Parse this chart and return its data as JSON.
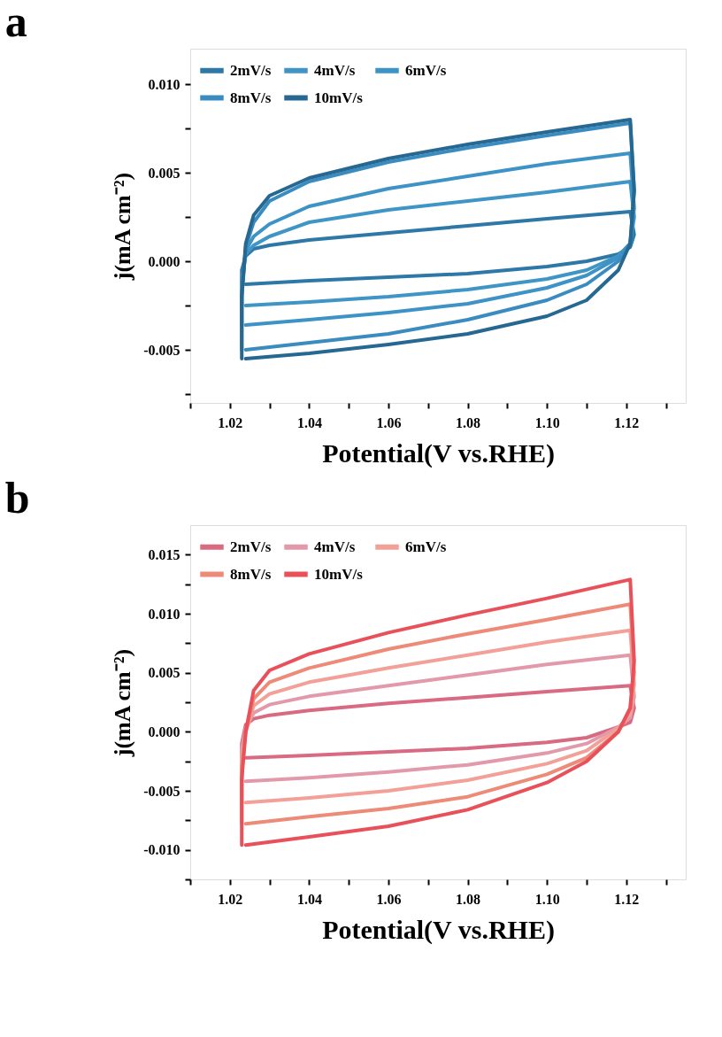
{
  "chart_data": [
    {
      "type": "line",
      "title": "a",
      "xlabel": "Potential(V vs.RHE)",
      "ylabel": "j(mA cm⁻²)",
      "legend": "top left",
      "grid": false,
      "line_style": "solid",
      "marker": "none",
      "x": [
        1.023,
        1.023,
        1.024,
        1.026,
        1.03,
        1.04,
        1.06,
        1.08,
        1.1,
        1.121,
        1.122,
        1.121,
        1.118,
        1.11,
        1.1,
        1.08,
        1.06,
        1.04,
        1.024
      ],
      "xlim": [
        1.01,
        1.135
      ],
      "xticks": [
        {
          "value": 1.01,
          "label": null
        },
        {
          "value": 1.02,
          "label": "1.02"
        },
        {
          "value": 1.03,
          "label": null
        },
        {
          "value": 1.04,
          "label": "1.04"
        },
        {
          "value": 1.05,
          "label": null
        },
        {
          "value": 1.06,
          "label": "1.06"
        },
        {
          "value": 1.07,
          "label": null
        },
        {
          "value": 1.08,
          "label": "1.08"
        },
        {
          "value": 1.09,
          "label": null
        },
        {
          "value": 1.1,
          "label": "1.10"
        },
        {
          "value": 1.11,
          "label": null
        },
        {
          "value": 1.12,
          "label": "1.12"
        },
        {
          "value": 1.13,
          "label": null
        }
      ],
      "ylim": [
        -0.008,
        0.012
      ],
      "yticks": [
        {
          "value": -0.0075,
          "label": null
        },
        {
          "value": -0.005,
          "label": "-0.005"
        },
        {
          "value": -0.0025,
          "label": null
        },
        {
          "value": 0,
          "label": "0.000"
        },
        {
          "value": 0.0025,
          "label": null
        },
        {
          "value": 0.005,
          "label": "0.005"
        },
        {
          "value": 0.0075,
          "label": null
        },
        {
          "value": 0.01,
          "label": "0.010"
        }
      ],
      "series": [
        {
          "name": "2mV/s",
          "color": "#2e78a8",
          "values": [
            -0.0013,
            -0.0005,
            0.0003,
            0.0007,
            0.0009,
            0.0012,
            0.0016,
            0.002,
            0.0024,
            0.0028,
            0.0015,
            0.0008,
            0.0004,
            0.0,
            -0.0003,
            -0.0007,
            -0.0009,
            -0.0011,
            -0.0013
          ]
        },
        {
          "name": "4mV/s",
          "color": "#3f95c6",
          "values": [
            -0.0025,
            -0.001,
            0.0004,
            0.0009,
            0.0014,
            0.0022,
            0.0029,
            0.0034,
            0.0039,
            0.0045,
            0.0025,
            0.001,
            0.0003,
            -0.0005,
            -0.001,
            -0.0016,
            -0.002,
            -0.0023,
            -0.0025
          ]
        },
        {
          "name": "6mV/s",
          "color": "#3d93c5",
          "values": [
            -0.0036,
            -0.0015,
            0.0006,
            0.0014,
            0.0021,
            0.0031,
            0.0041,
            0.0048,
            0.0055,
            0.0061,
            0.003,
            0.001,
            0.0002,
            -0.0008,
            -0.0015,
            -0.0024,
            -0.0029,
            -0.0033,
            -0.0036
          ]
        },
        {
          "name": "8mV/s",
          "color": "#3a8cc0",
          "values": [
            -0.005,
            -0.002,
            0.0008,
            0.0022,
            0.0034,
            0.0045,
            0.0056,
            0.0064,
            0.0071,
            0.0078,
            0.004,
            0.001,
            0.0,
            -0.0013,
            -0.0022,
            -0.0033,
            -0.0041,
            -0.0046,
            -0.005
          ]
        },
        {
          "name": "10mV/s",
          "color": "#266892",
          "values": [
            -0.0055,
            -0.002,
            0.001,
            0.0026,
            0.0037,
            0.0047,
            0.0058,
            0.0066,
            0.0073,
            0.008,
            0.004,
            0.001,
            -0.0005,
            -0.0022,
            -0.0031,
            -0.0041,
            -0.0047,
            -0.0052,
            -0.0055
          ]
        }
      ]
    },
    {
      "type": "line",
      "title": "b",
      "xlabel": "Potential(V vs.RHE)",
      "ylabel": "j(mA cm⁻²)",
      "legend": "top left",
      "grid": false,
      "line_style": "solid",
      "marker": "none",
      "x": [
        1.023,
        1.023,
        1.024,
        1.026,
        1.03,
        1.04,
        1.06,
        1.08,
        1.1,
        1.121,
        1.122,
        1.121,
        1.118,
        1.11,
        1.1,
        1.08,
        1.06,
        1.04,
        1.024
      ],
      "xlim": [
        1.01,
        1.135
      ],
      "xticks": [
        {
          "value": 1.01,
          "label": null
        },
        {
          "value": 1.02,
          "label": "1.02"
        },
        {
          "value": 1.03,
          "label": null
        },
        {
          "value": 1.04,
          "label": "1.04"
        },
        {
          "value": 1.05,
          "label": null
        },
        {
          "value": 1.06,
          "label": "1.06"
        },
        {
          "value": 1.07,
          "label": null
        },
        {
          "value": 1.08,
          "label": "1.08"
        },
        {
          "value": 1.09,
          "label": null
        },
        {
          "value": 1.1,
          "label": "1.10"
        },
        {
          "value": 1.11,
          "label": null
        },
        {
          "value": 1.12,
          "label": "1.12"
        },
        {
          "value": 1.13,
          "label": null
        }
      ],
      "ylim": [
        -0.0125,
        0.0175
      ],
      "yticks": [
        {
          "value": -0.0125,
          "label": null
        },
        {
          "value": -0.01,
          "label": "-0.010"
        },
        {
          "value": -0.0075,
          "label": null
        },
        {
          "value": -0.005,
          "label": "-0.005"
        },
        {
          "value": -0.0025,
          "label": null
        },
        {
          "value": 0,
          "label": "0.000"
        },
        {
          "value": 0.0025,
          "label": null
        },
        {
          "value": 0.005,
          "label": "0.005"
        },
        {
          "value": 0.0075,
          "label": null
        },
        {
          "value": 0.01,
          "label": "0.010"
        },
        {
          "value": 0.0125,
          "label": null
        },
        {
          "value": 0.015,
          "label": "0.015"
        }
      ],
      "series": [
        {
          "name": "2mV/s",
          "color": "#d86a82",
          "values": [
            -0.0022,
            -0.001,
            0.0006,
            0.0011,
            0.0014,
            0.0018,
            0.0024,
            0.0029,
            0.0034,
            0.0039,
            0.002,
            0.0008,
            0.0004,
            -0.0005,
            -0.0009,
            -0.0014,
            -0.0017,
            -0.002,
            -0.0022
          ]
        },
        {
          "name": "4mV/s",
          "color": "#e29aaa",
          "values": [
            -0.0042,
            -0.0015,
            0.0003,
            0.0016,
            0.0023,
            0.003,
            0.0039,
            0.0048,
            0.0057,
            0.0065,
            0.003,
            0.0012,
            0.0004,
            -0.001,
            -0.0018,
            -0.0028,
            -0.0034,
            -0.0039,
            -0.0042
          ]
        },
        {
          "name": "6mV/s",
          "color": "#f2a098",
          "values": [
            -0.006,
            -0.002,
            0.0,
            0.0022,
            0.0032,
            0.0042,
            0.0054,
            0.0065,
            0.0076,
            0.0086,
            0.004,
            0.0015,
            0.0003,
            -0.0016,
            -0.0027,
            -0.0041,
            -0.005,
            -0.0056,
            -0.006
          ]
        },
        {
          "name": "8mV/s",
          "color": "#ee8a78",
          "values": [
            -0.0078,
            -0.003,
            0.0,
            0.0028,
            0.0042,
            0.0054,
            0.007,
            0.0083,
            0.0095,
            0.0108,
            0.005,
            0.002,
            0.0,
            -0.0022,
            -0.0036,
            -0.0055,
            -0.0065,
            -0.0072,
            -0.0078
          ]
        },
        {
          "name": "10mV/s",
          "color": "#e8505a",
          "values": [
            -0.0096,
            -0.004,
            0.0,
            0.0035,
            0.0052,
            0.0066,
            0.0084,
            0.0099,
            0.0113,
            0.0129,
            0.006,
            0.002,
            0.0,
            -0.0025,
            -0.0043,
            -0.0066,
            -0.008,
            -0.0089,
            -0.0096
          ]
        }
      ]
    }
  ]
}
